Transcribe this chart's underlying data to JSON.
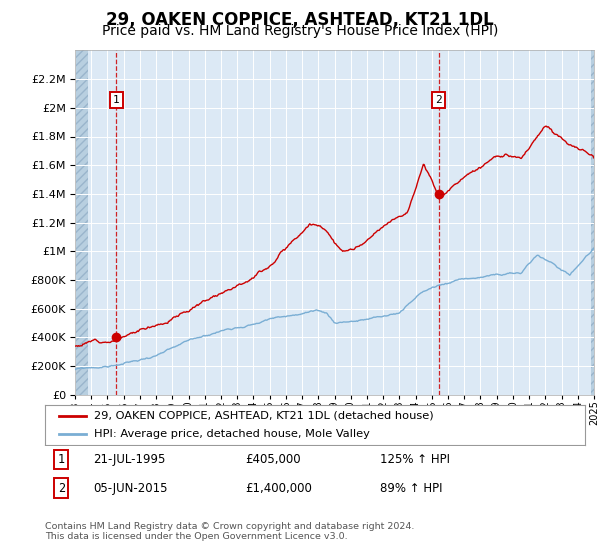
{
  "title": "29, OAKEN COPPICE, ASHTEAD, KT21 1DL",
  "subtitle": "Price paid vs. HM Land Registry's House Price Index (HPI)",
  "title_fontsize": 12,
  "subtitle_fontsize": 10,
  "background_color": "#dce9f5",
  "grid_color": "#ffffff",
  "red_line_color": "#cc0000",
  "blue_line_color": "#7aaed4",
  "transaction1_year": 1995.55,
  "transaction1_price": 405000,
  "transaction2_year": 2015.42,
  "transaction2_price": 1400000,
  "legend_line1": "29, OAKEN COPPICE, ASHTEAD, KT21 1DL (detached house)",
  "legend_line2": "HPI: Average price, detached house, Mole Valley",
  "annotation1_date": "21-JUL-1995",
  "annotation1_price": "£405,000",
  "annotation1_hpi": "125% ↑ HPI",
  "annotation2_date": "05-JUN-2015",
  "annotation2_price": "£1,400,000",
  "annotation2_hpi": "89% ↑ HPI",
  "footer": "Contains HM Land Registry data © Crown copyright and database right 2024.\nThis data is licensed under the Open Government Licence v3.0.",
  "xmin": 1993,
  "xmax": 2025,
  "ymin": 0,
  "ymax": 2400000,
  "yticks": [
    0,
    200000,
    400000,
    600000,
    800000,
    1000000,
    1200000,
    1400000,
    1600000,
    1800000,
    2000000,
    2200000
  ]
}
